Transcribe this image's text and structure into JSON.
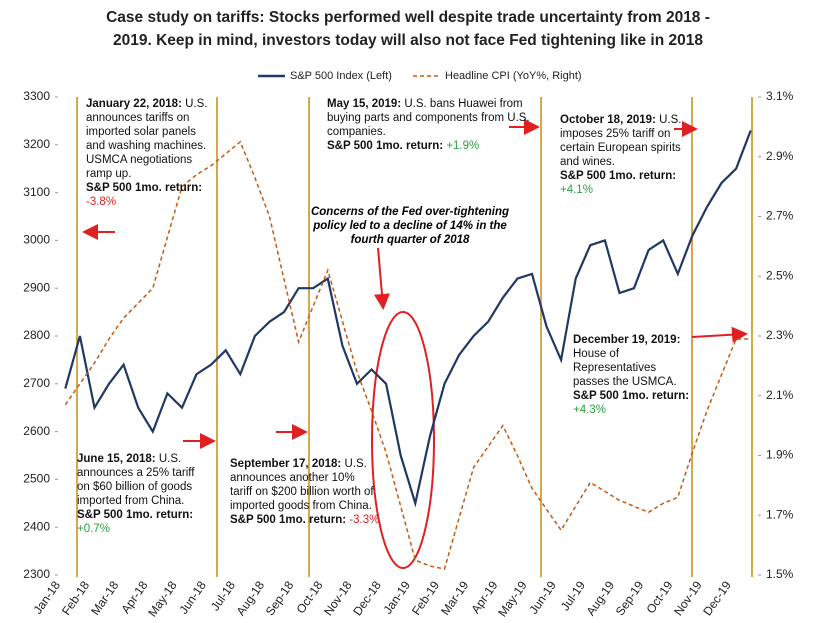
{
  "chart_data": {
    "type": "line",
    "title": "Case study on tariffs: Stocks performed well despite trade uncertainty from 2018 -",
    "subtitle": "2019. Keep in mind, investors today will also not face Fed tightening like in 2018",
    "categories": [
      "Jan-18",
      null,
      "Feb-18",
      null,
      "Mar-18",
      null,
      "Apr-18",
      null,
      "May-18",
      null,
      "Jun-18",
      null,
      "Jul-18",
      null,
      "Aug-18",
      null,
      "Sep-18",
      null,
      "Oct-18",
      null,
      "Nov-18",
      null,
      "Dec-18",
      null,
      "Jan-19",
      null,
      "Feb-19",
      null,
      "Mar-19",
      null,
      "Apr-19",
      null,
      "May-19",
      null,
      "Jun-19",
      null,
      "Jul-19",
      null,
      "Aug-19",
      null,
      "Sep-19",
      null,
      "Oct-19",
      null,
      "Nov-19",
      null,
      "Dec-19",
      null
    ],
    "series": [
      {
        "name": "S&P 500 Index (Left)",
        "color": "#1f3864",
        "dash": false,
        "values": [
          2690,
          2800,
          2650,
          2700,
          2740,
          2650,
          2600,
          2680,
          2650,
          2720,
          2740,
          2770,
          2720,
          2800,
          2830,
          2850,
          2900,
          2900,
          2920,
          2780,
          2700,
          2730,
          2700,
          2550,
          2450,
          2590,
          2700,
          2760,
          2800,
          2830,
          2880,
          2920,
          2930,
          2820,
          2750,
          2920,
          2990,
          3000,
          2890,
          2900,
          2980,
          3000,
          2930,
          3010,
          3070,
          3120,
          3150,
          3230
        ]
      },
      {
        "name": "Headline CPI (YoY%, Right)",
        "color": "#c55a11",
        "dash": true,
        "axis": "y2",
        "values": [
          2.07,
          2.14,
          2.21,
          2.29,
          2.36,
          2.41,
          2.46,
          2.63,
          2.8,
          2.84,
          2.87,
          2.91,
          2.95,
          2.83,
          2.7,
          2.49,
          2.28,
          2.4,
          2.52,
          2.35,
          2.18,
          2.05,
          1.91,
          1.73,
          1.55,
          1.53,
          1.52,
          1.69,
          1.86,
          1.93,
          2.0,
          1.9,
          1.79,
          1.72,
          1.65,
          1.73,
          1.81,
          1.78,
          1.75,
          1.73,
          1.71,
          1.74,
          1.76,
          1.91,
          2.05,
          2.17,
          2.29,
          2.29
        ]
      }
    ],
    "ylim": [
      2300,
      3300
    ],
    "yticks": [
      2300,
      2400,
      2500,
      2600,
      2700,
      2800,
      2900,
      3000,
      3100,
      3200,
      3300
    ],
    "y2lim": [
      1.5,
      3.1
    ],
    "y2ticks": [
      {
        "value": 1.5,
        "label": "1.5%"
      },
      {
        "value": 1.7,
        "label": "1.7%"
      },
      {
        "value": 1.9,
        "label": "1.9%"
      },
      {
        "value": 2.1,
        "label": "2.1%"
      },
      {
        "value": 2.3,
        "label": "2.3%"
      },
      {
        "value": 2.5,
        "label": "2.5%"
      },
      {
        "value": 2.7,
        "label": "2.7%"
      },
      {
        "value": 2.9,
        "label": "2.9%"
      },
      {
        "value": 3.1,
        "label": "3.1%"
      }
    ],
    "grid": false,
    "legend": "top",
    "annotations": [
      {
        "date": "January 22, 2018:",
        "text": "U.S. announces tariffs on imported solar panels and washing machines. USMCA negotiations ramp up.",
        "return_label": "S&P 500 1mo. return:",
        "return": "-3.8%"
      },
      {
        "date": "June 15, 2018:",
        "text": "U.S. announces a 25% tariff on $60 billion of goods imported from China.",
        "return_label": "S&P 500 1mo. return:",
        "return": "+0.7%"
      },
      {
        "date": "September 17, 2018:",
        "text": "U.S. announces another 10% tariff on $200 billion worth of imported goods from China.",
        "return_label": "S&P 500 1mo. return:",
        "return": "-3.3%"
      },
      {
        "date": "May 15, 2019:",
        "text": "U.S. bans Huawei from buying parts and components from U.S. companies.",
        "return_label": "S&P 500 1mo. return:",
        "return": "+1.9%"
      },
      {
        "date": "October 18, 2019:",
        "text": "U.S. imposes 25% tariff on certain European spirits and wines.",
        "return_label": "S&P 500 1mo. return:",
        "return": "+4.1%"
      },
      {
        "date": "December 19, 2019:",
        "text": "House of Representatives passes the USMCA.",
        "return_label": "S&P 500 1mo. return:",
        "return": "+4.3%"
      }
    ],
    "callout": "Concerns of the Fed over-tightening policy led to a decline of 14% in the fourth quarter of 2018"
  }
}
